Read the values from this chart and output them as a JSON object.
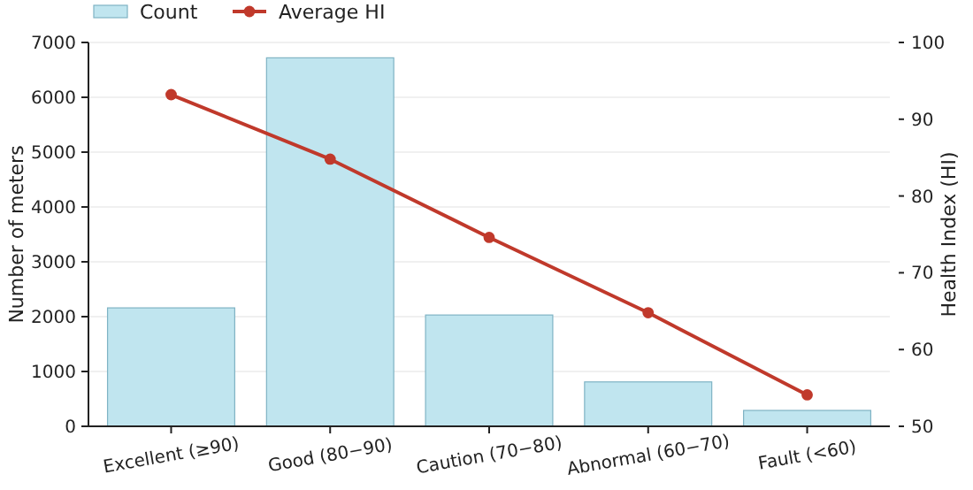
{
  "chart_data": {
    "type": "bar",
    "categories": [
      "Excellent (≥90)",
      "Good (80−90)",
      "Caution (70−80)",
      "Abnormal (60−70)",
      "Fault (<60)"
    ],
    "series": [
      {
        "name": "Count",
        "color": "#c0e5ef",
        "values": [
          2160,
          6720,
          2030,
          810,
          290
        ]
      },
      {
        "name": "Average HI",
        "type": "line",
        "axis": "y2",
        "color": "#c0392b",
        "values": [
          93.2,
          84.8,
          74.6,
          64.8,
          54.1
        ]
      }
    ],
    "ylabel": "Number of meters",
    "y2label": "Health Index (HI)",
    "ylim": [
      0,
      7000
    ],
    "yticks": [
      0,
      1000,
      2000,
      3000,
      4000,
      5000,
      6000,
      7000
    ],
    "y2lim": [
      50,
      100
    ],
    "y2ticks": [
      50,
      60,
      70,
      80,
      90,
      100
    ],
    "grid": "y",
    "legend": "top left",
    "marker": "circle"
  }
}
